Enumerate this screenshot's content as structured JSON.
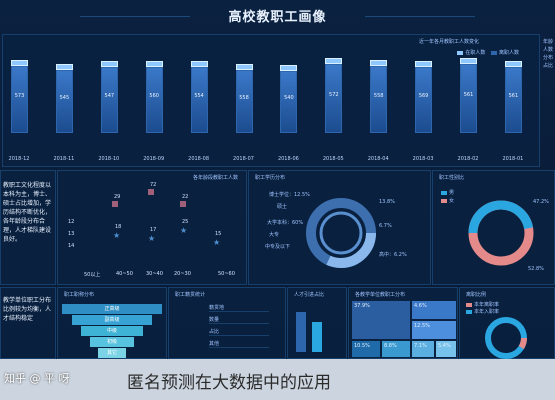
{
  "header": {
    "title": "高校教职工画像"
  },
  "top_chart": {
    "title": "近一年各月教职工人数变化",
    "legend": [
      "在职人数",
      "离职人数"
    ],
    "months": [
      "2018-12",
      "2018-11",
      "2018-10",
      "2018-09",
      "2018-08",
      "2018-07",
      "2018-06",
      "2018-05",
      "2018-04",
      "2018-03",
      "2018-02",
      "2018-01"
    ],
    "values": [
      "573",
      "545",
      "547",
      "560",
      "554",
      "558",
      "540",
      "572",
      "558",
      "569",
      "561",
      "561"
    ],
    "fill_fraction": [
      0.93,
      0.88,
      0.92,
      0.92,
      0.92,
      0.88,
      0.86,
      0.96,
      0.93,
      0.92,
      0.96,
      0.92
    ]
  },
  "right_side": {
    "note": "年龄人数分布占比"
  },
  "left_note": {
    "text": "教职工文化程度以本科为主，博士、硕士占比增加，学历结构不断优化，各年龄段分布合理，人才梯队建设良好。"
  },
  "scatter": {
    "title": "各年龄段教职工人数",
    "xlabels": [
      "50以上",
      "40~50",
      "30~40",
      "20~30",
      "50~60"
    ],
    "y_labels": [
      "12",
      "13",
      "14"
    ],
    "square_labels": [
      "72",
      "22",
      "29"
    ],
    "star_labels": [
      "18",
      "17",
      "25",
      "15"
    ]
  },
  "donut1": {
    "title": "职工学历分布",
    "labels": [
      "博士学位：12.5%",
      "硕士",
      "大学本科：60%",
      "大专",
      "中专及以下",
      "13.8%",
      "6.7%",
      "高中：6.2%"
    ]
  },
  "donut2": {
    "title": "职工性别比",
    "legend": [
      "男",
      "女"
    ],
    "labels": [
      "47.2%",
      "52.8%"
    ]
  },
  "funnel": {
    "title": "职工职称分布",
    "labels": [
      "正高级",
      "副高级",
      "中级",
      "初级",
      "其它"
    ]
  },
  "table_panel": {
    "title": "职工籍贯统计",
    "rows": [
      "籍贯地",
      "数量",
      "占比",
      "其他"
    ]
  },
  "bars2": {
    "title": "人才引进占比"
  },
  "treemap": {
    "title": "各教学单位教职工分布",
    "blocks": [
      "37.9%",
      "4.6%",
      "12.5%",
      "10.5%",
      "8.8%",
      "7.1%",
      "5.4%"
    ]
  },
  "mini_donut": {
    "title": "离职比例",
    "legend": [
      "本年离职率",
      "本年入职率"
    ]
  },
  "bottom_left": {
    "text": "教学单位职工分布比例较为均衡，人才结构稳定"
  },
  "watermark": {
    "logo": "知乎 @ 平 呀",
    "text": "匿名预测在大数据中的应用"
  },
  "colors": {
    "bg": "#0a1a33",
    "panel": "#092142",
    "accent": "#3a78c8",
    "pink": "#e48a8a",
    "cyan": "#2aa6e0"
  }
}
